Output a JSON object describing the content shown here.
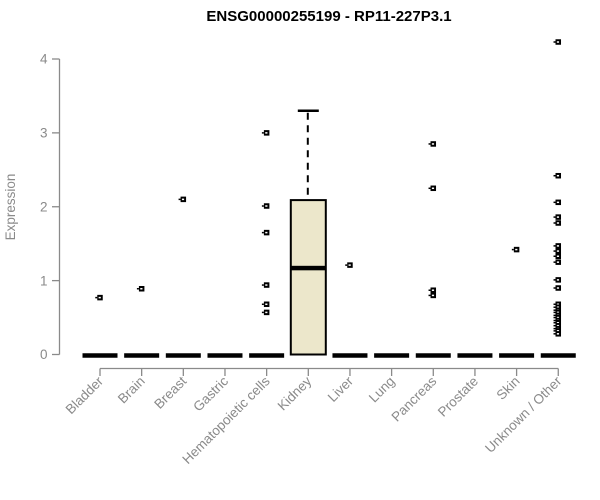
{
  "chart_data": {
    "type": "boxplot",
    "title": "ENSG00000255199 - RP11-227P3.1",
    "ylabel": "Expression",
    "xlabel": "",
    "ylim": [
      0,
      4
    ],
    "yticks": [
      0,
      1,
      2,
      3,
      4
    ],
    "grid": false,
    "legend": false,
    "categories": [
      "Bladder",
      "Brain",
      "Breast",
      "Gastric",
      "Hematopoietic cells",
      "Kidney",
      "Liver",
      "Lung",
      "Pancreas",
      "Prostate",
      "Skin",
      "Unknown / Other"
    ],
    "boxes": [
      {
        "category": "Bladder",
        "q1": 0,
        "median": 0,
        "q3": 0,
        "whisker_low": 0,
        "whisker_high": 0,
        "outliers": [
          0.77
        ]
      },
      {
        "category": "Brain",
        "q1": 0,
        "median": 0,
        "q3": 0,
        "whisker_low": 0,
        "whisker_high": 0,
        "outliers": [
          0.89
        ]
      },
      {
        "category": "Breast",
        "q1": 0,
        "median": 0,
        "q3": 0,
        "whisker_low": 0,
        "whisker_high": 0,
        "outliers": [
          2.1
        ]
      },
      {
        "category": "Gastric",
        "q1": 0,
        "median": 0,
        "q3": 0,
        "whisker_low": 0,
        "whisker_high": 0,
        "outliers": []
      },
      {
        "category": "Hematopoietic cells",
        "q1": 0,
        "median": 0,
        "q3": 0,
        "whisker_low": 0,
        "whisker_high": 0,
        "outliers": [
          3.0,
          2.01,
          1.65,
          0.94,
          0.68,
          0.57
        ]
      },
      {
        "category": "Kidney",
        "q1": 0,
        "median": 1.17,
        "q3": 2.09,
        "whisker_low": 0,
        "whisker_high": 3.3,
        "outliers": []
      },
      {
        "category": "Liver",
        "q1": 0,
        "median": 0,
        "q3": 0,
        "whisker_low": 0,
        "whisker_high": 0,
        "outliers": [
          1.21
        ]
      },
      {
        "category": "Lung",
        "q1": 0,
        "median": 0,
        "q3": 0,
        "whisker_low": 0,
        "whisker_high": 0,
        "outliers": []
      },
      {
        "category": "Pancreas",
        "q1": 0,
        "median": 0,
        "q3": 0,
        "whisker_low": 0,
        "whisker_high": 0,
        "outliers": [
          2.85,
          2.25,
          0.87,
          0.8
        ]
      },
      {
        "category": "Prostate",
        "q1": 0,
        "median": 0,
        "q3": 0,
        "whisker_low": 0,
        "whisker_high": 0,
        "outliers": []
      },
      {
        "category": "Skin",
        "q1": 0,
        "median": 0,
        "q3": 0,
        "whisker_low": 0,
        "whisker_high": 0,
        "outliers": [
          1.42
        ]
      },
      {
        "category": "Unknown / Other",
        "q1": 0,
        "median": 0,
        "q3": 0,
        "whisker_low": 0,
        "whisker_high": 0,
        "outliers": [
          4.23,
          2.42,
          2.06,
          1.86,
          1.78,
          1.47,
          1.4,
          1.33,
          1.25,
          1.01,
          0.9,
          0.68,
          0.64,
          0.6,
          0.57,
          0.53,
          0.5,
          0.46,
          0.43,
          0.39,
          0.35,
          0.32,
          0.28
        ]
      }
    ],
    "colors": {
      "box_fill": "#ece7cb",
      "box_stroke": "#000000",
      "median": "#000000",
      "whisker": "#000000",
      "outlier": "#000000",
      "axis": "#8a8a8a",
      "tick_label": "#8a8a8a",
      "title": "#000000",
      "background": "#ffffff"
    }
  }
}
